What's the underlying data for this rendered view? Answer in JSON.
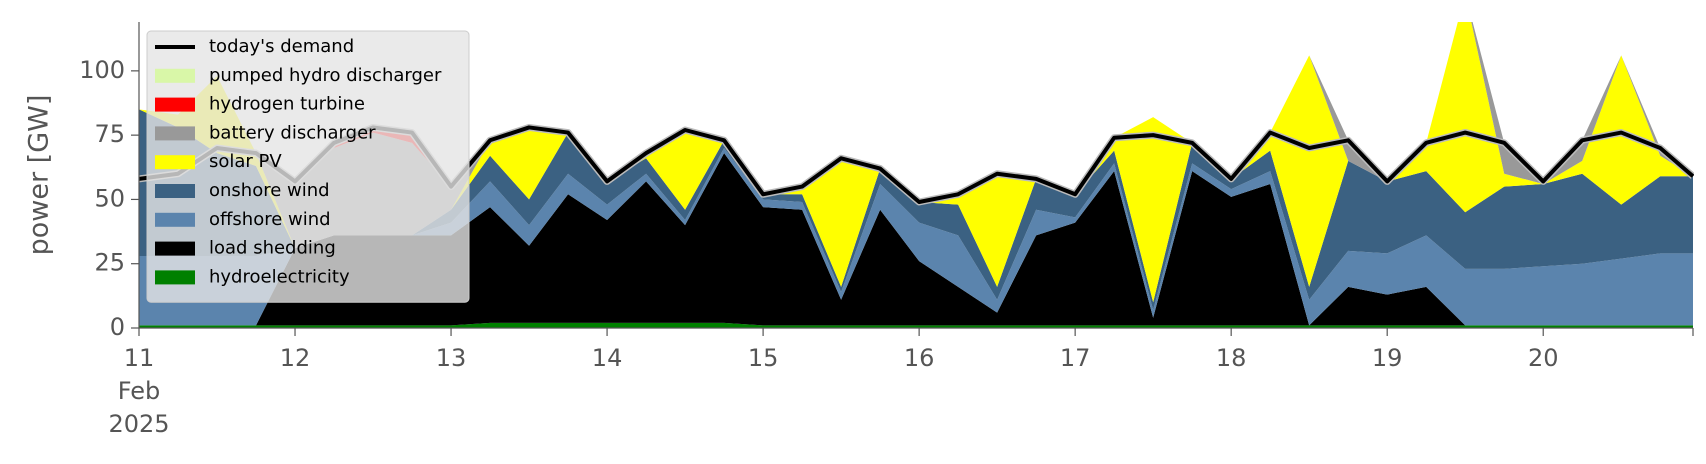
{
  "chart_data": {
    "type": "stacked_area",
    "y_label": "power [GW]",
    "x": [
      11,
      11.25,
      11.5,
      11.75,
      12,
      12.25,
      12.5,
      12.75,
      13,
      13.25,
      13.5,
      13.75,
      14,
      14.25,
      14.5,
      14.75,
      15,
      15.25,
      15.5,
      15.75,
      16,
      16.25,
      16.5,
      16.75,
      17,
      17.25,
      17.5,
      17.75,
      18,
      18.25,
      18.5,
      18.75,
      19,
      19.25,
      19.5,
      19.75,
      20,
      20.25,
      20.5,
      20.75,
      20.96
    ],
    "xlim": [
      11,
      20.96
    ],
    "xticks": [
      {
        "value": 11,
        "label": "11\nFeb\n2025"
      },
      12,
      13,
      14,
      15,
      16,
      17,
      18,
      19,
      20
    ],
    "ylim": [
      0,
      119
    ],
    "yticks": [
      0,
      25,
      50,
      75,
      100
    ],
    "grid": false,
    "legend": "upper left",
    "series": [
      {
        "name": "hydroelectricity",
        "color": "#008000",
        "values": [
          1,
          1,
          1,
          1,
          1,
          1,
          1,
          1,
          1,
          2,
          2,
          2,
          2,
          2,
          2,
          2,
          1,
          1,
          1,
          1,
          1,
          1,
          1,
          1,
          1,
          1,
          1,
          1,
          1,
          1,
          1,
          1,
          1,
          1,
          1,
          1,
          1,
          1,
          1,
          1,
          1
        ]
      },
      {
        "name": "load shedding",
        "color": "#000000",
        "values": [
          0,
          0,
          0,
          0,
          30,
          35,
          35,
          35,
          35,
          45,
          30,
          50,
          40,
          55,
          38,
          66,
          46,
          45,
          10,
          45,
          25,
          15,
          5,
          35,
          40,
          60,
          3,
          60,
          50,
          55,
          0,
          15,
          12,
          15,
          0,
          0,
          0,
          0,
          0,
          0,
          0
        ]
      },
      {
        "name": "offshore wind",
        "color": "#5b84ad",
        "values": [
          27,
          27,
          27,
          27,
          0,
          0,
          0,
          0,
          5,
          10,
          8,
          8,
          6,
          3,
          2,
          2,
          3,
          3,
          3,
          10,
          15,
          20,
          5,
          10,
          2,
          3,
          3,
          3,
          3,
          5,
          10,
          14,
          16,
          20,
          22,
          22,
          23,
          24,
          26,
          28,
          28
        ]
      },
      {
        "name": "onshore wind",
        "color": "#3b6182",
        "values": [
          57,
          50,
          40,
          35,
          0,
          0,
          0,
          0,
          5,
          10,
          10,
          16,
          9,
          6,
          4,
          3,
          2,
          3,
          2,
          6,
          8,
          12,
          5,
          12,
          9,
          5,
          3,
          8,
          4,
          8,
          5,
          35,
          28,
          25,
          22,
          32,
          32,
          35,
          21,
          30,
          30
        ]
      },
      {
        "name": "solar PV",
        "color": "#ffff00",
        "values": [
          0,
          5,
          30,
          5,
          0,
          0,
          0,
          0,
          0,
          6,
          28,
          0,
          0,
          2,
          31,
          0,
          0,
          3,
          50,
          0,
          0,
          4,
          44,
          0,
          0,
          5,
          72,
          0,
          0,
          7,
          90,
          0,
          0,
          11,
          85,
          5,
          0,
          5,
          58,
          8,
          0
        ]
      },
      {
        "name": "battery discharger",
        "color": "#999999",
        "values": [
          0,
          0,
          0,
          0,
          26,
          34,
          40,
          36,
          9,
          0,
          0,
          0,
          0,
          0,
          0,
          0,
          0,
          0,
          0,
          0,
          0,
          0,
          0,
          0,
          0,
          0,
          0,
          0,
          0,
          0,
          0,
          8,
          0,
          0,
          0,
          12,
          1,
          8,
          0,
          3,
          0
        ]
      },
      {
        "name": "hydrogen turbine",
        "color": "#ff0000",
        "values": [
          0,
          0,
          0,
          0,
          0,
          2,
          2,
          4,
          0,
          0,
          0,
          0,
          0,
          0,
          0,
          0,
          0,
          0,
          0,
          0,
          0,
          0,
          0,
          0,
          0,
          0,
          0,
          0,
          0,
          0,
          0,
          0,
          0,
          0,
          0,
          0,
          0,
          0,
          0,
          0,
          0
        ]
      },
      {
        "name": "pumped hydro discharger",
        "color": "#d9f7a8",
        "values": [
          0,
          0,
          0,
          0,
          0,
          0,
          0,
          0,
          0,
          0,
          0,
          0,
          0,
          0,
          0,
          0,
          0,
          0,
          0,
          0,
          0,
          0,
          0,
          0,
          0,
          0,
          0,
          0,
          0,
          0,
          0,
          0,
          0,
          0,
          0,
          0,
          0,
          0,
          0,
          0,
          0
        ]
      }
    ],
    "demand": {
      "name": "today's demand",
      "color": "#000000",
      "values": [
        58,
        60,
        70,
        68,
        57,
        72,
        78,
        76,
        55,
        73,
        78,
        76,
        57,
        68,
        77,
        73,
        52,
        55,
        66,
        62,
        49,
        52,
        60,
        58,
        52,
        74,
        75,
        72,
        58,
        76,
        70,
        73,
        57,
        72,
        76,
        72,
        57,
        73,
        76,
        70,
        59
      ]
    }
  }
}
